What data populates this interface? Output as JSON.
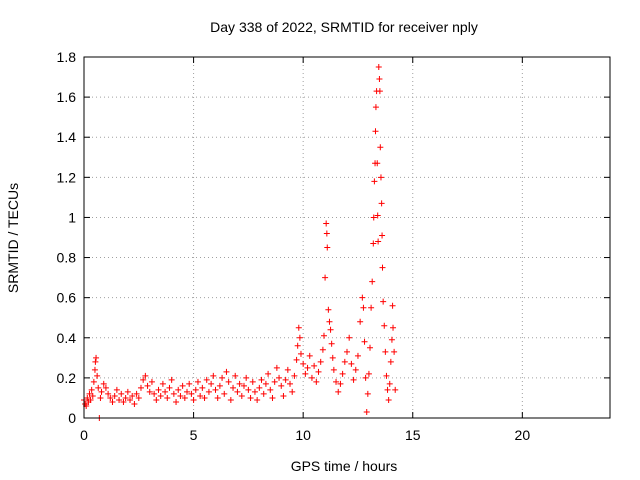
{
  "chart_data": {
    "type": "scatter",
    "title": "Day 338 of 2022, SRMTID for receiver nply",
    "xlabel": "GPS time / hours",
    "ylabel": "SRMTID / TECUs",
    "xlim": [
      0,
      24
    ],
    "ylim": [
      0,
      1.8
    ],
    "x_ticks": [
      0,
      5,
      10,
      15,
      20
    ],
    "x_tick_labels": [
      "0",
      "5",
      "10",
      "15",
      "20"
    ],
    "y_ticks": [
      0,
      0.2,
      0.4,
      0.6,
      0.8,
      1.0,
      1.2,
      1.4,
      1.6,
      1.8
    ],
    "y_tick_labels": [
      "0",
      "0.2",
      "0.4",
      "0.6",
      "0.8",
      "1",
      "1.2",
      "1.4",
      "1.6",
      "1.8"
    ],
    "grid": true,
    "marker": "+",
    "color": "#ff0000",
    "series": [
      {
        "name": "SRMTID",
        "points": [
          [
            0.0,
            0.09
          ],
          [
            0.05,
            0.07
          ],
          [
            0.1,
            0.06
          ],
          [
            0.15,
            0.1
          ],
          [
            0.2,
            0.08
          ],
          [
            0.25,
            0.12
          ],
          [
            0.3,
            0.09
          ],
          [
            0.35,
            0.14
          ],
          [
            0.4,
            0.11
          ],
          [
            0.45,
            0.18
          ],
          [
            0.5,
            0.24
          ],
          [
            0.52,
            0.28
          ],
          [
            0.55,
            0.3
          ],
          [
            0.6,
            0.21
          ],
          [
            0.65,
            0.15
          ],
          [
            0.7,
            0.0
          ],
          [
            0.75,
            0.1
          ],
          [
            0.8,
            0.13
          ],
          [
            0.9,
            0.17
          ],
          [
            1.0,
            0.15
          ],
          [
            1.1,
            0.12
          ],
          [
            1.2,
            0.1
          ],
          [
            1.3,
            0.08
          ],
          [
            1.4,
            0.11
          ],
          [
            1.5,
            0.14
          ],
          [
            1.6,
            0.09
          ],
          [
            1.7,
            0.12
          ],
          [
            1.8,
            0.08
          ],
          [
            1.9,
            0.1
          ],
          [
            2.0,
            0.13
          ],
          [
            2.1,
            0.09
          ],
          [
            2.2,
            0.11
          ],
          [
            2.3,
            0.07
          ],
          [
            2.4,
            0.12
          ],
          [
            2.5,
            0.1
          ],
          [
            2.6,
            0.15
          ],
          [
            2.7,
            0.19
          ],
          [
            2.8,
            0.21
          ],
          [
            2.9,
            0.16
          ],
          [
            3.0,
            0.13
          ],
          [
            3.1,
            0.18
          ],
          [
            3.2,
            0.12
          ],
          [
            3.3,
            0.09
          ],
          [
            3.4,
            0.14
          ],
          [
            3.5,
            0.11
          ],
          [
            3.6,
            0.17
          ],
          [
            3.7,
            0.13
          ],
          [
            3.8,
            0.1
          ],
          [
            3.9,
            0.15
          ],
          [
            4.0,
            0.19
          ],
          [
            4.1,
            0.12
          ],
          [
            4.2,
            0.08
          ],
          [
            4.3,
            0.14
          ],
          [
            4.4,
            0.11
          ],
          [
            4.5,
            0.16
          ],
          [
            4.6,
            0.1
          ],
          [
            4.7,
            0.13
          ],
          [
            4.8,
            0.17
          ],
          [
            4.9,
            0.12
          ],
          [
            5.0,
            0.09
          ],
          [
            5.1,
            0.14
          ],
          [
            5.2,
            0.18
          ],
          [
            5.3,
            0.11
          ],
          [
            5.4,
            0.15
          ],
          [
            5.5,
            0.1
          ],
          [
            5.6,
            0.19
          ],
          [
            5.7,
            0.13
          ],
          [
            5.8,
            0.17
          ],
          [
            5.9,
            0.21
          ],
          [
            6.0,
            0.14
          ],
          [
            6.1,
            0.1
          ],
          [
            6.2,
            0.16
          ],
          [
            6.3,
            0.2
          ],
          [
            6.4,
            0.12
          ],
          [
            6.5,
            0.23
          ],
          [
            6.6,
            0.18
          ],
          [
            6.7,
            0.09
          ],
          [
            6.8,
            0.15
          ],
          [
            6.9,
            0.21
          ],
          [
            7.0,
            0.13
          ],
          [
            7.1,
            0.17
          ],
          [
            7.2,
            0.11
          ],
          [
            7.3,
            0.16
          ],
          [
            7.4,
            0.2
          ],
          [
            7.5,
            0.14
          ],
          [
            7.6,
            0.1
          ],
          [
            7.7,
            0.18
          ],
          [
            7.8,
            0.13
          ],
          [
            7.9,
            0.09
          ],
          [
            8.0,
            0.15
          ],
          [
            8.1,
            0.19
          ],
          [
            8.2,
            0.12
          ],
          [
            8.3,
            0.17
          ],
          [
            8.4,
            0.22
          ],
          [
            8.5,
            0.14
          ],
          [
            8.6,
            0.1
          ],
          [
            8.7,
            0.18
          ],
          [
            8.8,
            0.25
          ],
          [
            8.9,
            0.2
          ],
          [
            9.0,
            0.16
          ],
          [
            9.1,
            0.11
          ],
          [
            9.2,
            0.19
          ],
          [
            9.3,
            0.24
          ],
          [
            9.4,
            0.17
          ],
          [
            9.5,
            0.13
          ],
          [
            9.6,
            0.21
          ],
          [
            9.7,
            0.29
          ],
          [
            9.75,
            0.36
          ],
          [
            9.8,
            0.45
          ],
          [
            9.85,
            0.4
          ],
          [
            9.9,
            0.32
          ],
          [
            10.0,
            0.27
          ],
          [
            10.1,
            0.22
          ],
          [
            10.2,
            0.25
          ],
          [
            10.3,
            0.31
          ],
          [
            10.4,
            0.2
          ],
          [
            10.5,
            0.26
          ],
          [
            10.6,
            0.18
          ],
          [
            10.7,
            0.23
          ],
          [
            10.8,
            0.28
          ],
          [
            10.9,
            0.34
          ],
          [
            10.95,
            0.41
          ],
          [
            11.0,
            0.7
          ],
          [
            11.05,
            0.97
          ],
          [
            11.08,
            0.92
          ],
          [
            11.1,
            0.85
          ],
          [
            11.15,
            0.54
          ],
          [
            11.2,
            0.48
          ],
          [
            11.25,
            0.44
          ],
          [
            11.3,
            0.37
          ],
          [
            11.35,
            0.3
          ],
          [
            11.4,
            0.24
          ],
          [
            11.5,
            0.18
          ],
          [
            11.6,
            0.13
          ],
          [
            11.7,
            0.17
          ],
          [
            11.8,
            0.22
          ],
          [
            11.9,
            0.28
          ],
          [
            12.0,
            0.33
          ],
          [
            12.1,
            0.4
          ],
          [
            12.2,
            0.27
          ],
          [
            12.3,
            0.19
          ],
          [
            12.4,
            0.24
          ],
          [
            12.5,
            0.31
          ],
          [
            12.6,
            0.48
          ],
          [
            12.7,
            0.6
          ],
          [
            12.75,
            0.55
          ],
          [
            12.8,
            0.38
          ],
          [
            12.85,
            0.2
          ],
          [
            12.9,
            0.03
          ],
          [
            12.95,
            0.12
          ],
          [
            13.0,
            0.22
          ],
          [
            13.05,
            0.35
          ],
          [
            13.1,
            0.55
          ],
          [
            13.15,
            0.68
          ],
          [
            13.2,
            0.87
          ],
          [
            13.22,
            1.0
          ],
          [
            13.25,
            1.18
          ],
          [
            13.28,
            1.27
          ],
          [
            13.3,
            1.43
          ],
          [
            13.32,
            1.55
          ],
          [
            13.35,
            1.63
          ],
          [
            13.38,
            1.27
          ],
          [
            13.4,
            1.01
          ],
          [
            13.42,
            0.88
          ],
          [
            13.45,
            1.75
          ],
          [
            13.48,
            1.69
          ],
          [
            13.5,
            1.63
          ],
          [
            13.52,
            1.35
          ],
          [
            13.55,
            1.2
          ],
          [
            13.58,
            1.07
          ],
          [
            13.6,
            0.91
          ],
          [
            13.62,
            0.75
          ],
          [
            13.65,
            0.58
          ],
          [
            13.7,
            0.46
          ],
          [
            13.75,
            0.33
          ],
          [
            13.8,
            0.21
          ],
          [
            13.85,
            0.14
          ],
          [
            13.9,
            0.09
          ],
          [
            13.95,
            0.17
          ],
          [
            14.0,
            0.28
          ],
          [
            14.05,
            0.39
          ],
          [
            14.08,
            0.56
          ],
          [
            14.1,
            0.45
          ],
          [
            14.15,
            0.33
          ],
          [
            14.2,
            0.14
          ]
        ]
      }
    ]
  }
}
